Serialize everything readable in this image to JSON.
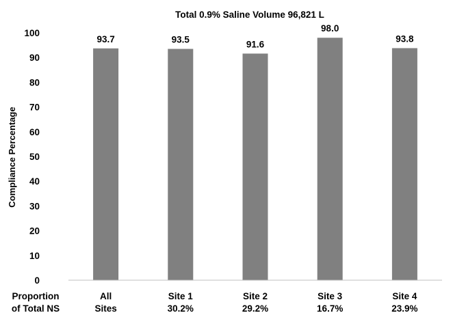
{
  "chart_data": {
    "type": "bar",
    "title": "Total 0.9% Saline Volume 96,821 L",
    "ylabel": "Compliance Percentage",
    "xlabel": "",
    "ylim": [
      0,
      100
    ],
    "yticks": [
      0,
      10,
      20,
      30,
      40,
      50,
      60,
      70,
      80,
      90,
      100
    ],
    "row_label": [
      "Proportion",
      "of Total NS"
    ],
    "categories": [
      {
        "line1": "All",
        "line2": "Sites"
      },
      {
        "line1": "Site 1",
        "line2": "30.2%"
      },
      {
        "line1": "Site 2",
        "line2": "29.2%"
      },
      {
        "line1": "Site 3",
        "line2": "16.7%"
      },
      {
        "line1": "Site 4",
        "line2": "23.9%"
      }
    ],
    "values": [
      93.7,
      93.5,
      91.6,
      98.0,
      93.8
    ],
    "data_labels": [
      "93.7",
      "93.5",
      "91.6",
      "98.0",
      "93.8"
    ],
    "bar_color": "#808080",
    "axis_color": "#bfbfbf",
    "grid": false,
    "legend": "none"
  }
}
